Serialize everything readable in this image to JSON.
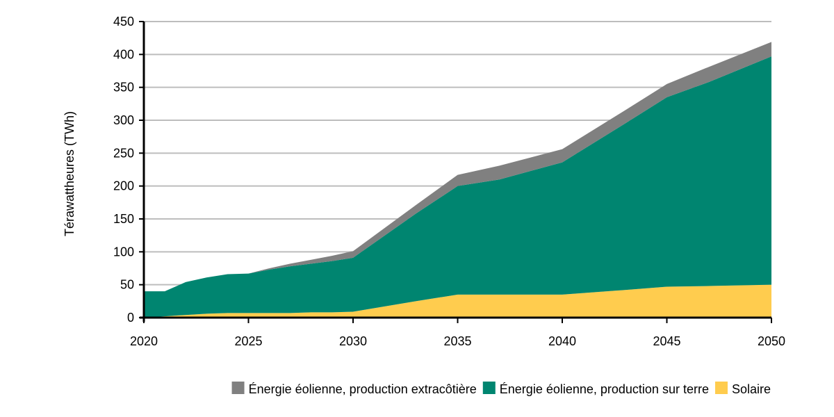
{
  "chart_data": {
    "type": "area",
    "stacked": true,
    "title": "",
    "xlabel": "",
    "ylabel": "Térawattheures (TWh)",
    "xlim": [
      2020,
      2050
    ],
    "ylim": [
      0,
      450
    ],
    "x_ticks": [
      "2020",
      "2025",
      "2030",
      "2035",
      "2040",
      "2045",
      "2050"
    ],
    "y_ticks": [
      "0",
      "50",
      "100",
      "150",
      "200",
      "250",
      "300",
      "350",
      "400",
      "450"
    ],
    "grid": "horizontal",
    "legend_position": "bottom",
    "x": [
      2020,
      2021,
      2022,
      2023,
      2024,
      2025,
      2026,
      2027,
      2028,
      2029,
      2030,
      2033,
      2035,
      2037,
      2040,
      2043,
      2045,
      2047,
      2050
    ],
    "series": [
      {
        "name": "Solaire",
        "color": "#FFCC4E",
        "values": [
          0,
          2,
          4,
          6,
          7,
          7,
          7,
          7,
          8,
          8,
          9,
          25,
          35,
          35,
          35,
          42,
          47,
          48,
          50
        ]
      },
      {
        "name": "Énergie éolienne, production sur terre",
        "color": "#008570",
        "values": [
          40,
          38,
          50,
          55,
          59,
          60,
          66,
          71,
          74,
          78,
          82,
          133,
          165,
          175,
          201,
          253,
          288,
          310,
          347
        ]
      },
      {
        "name": "Énergie éolienne, production extracôtière",
        "color": "#808080",
        "values": [
          0,
          0,
          0,
          0,
          0,
          0,
          2,
          4,
          6,
          8,
          10,
          13,
          17,
          21,
          20,
          20,
          20,
          23,
          22
        ]
      }
    ],
    "legend_order": [
      2,
      1,
      0
    ]
  }
}
